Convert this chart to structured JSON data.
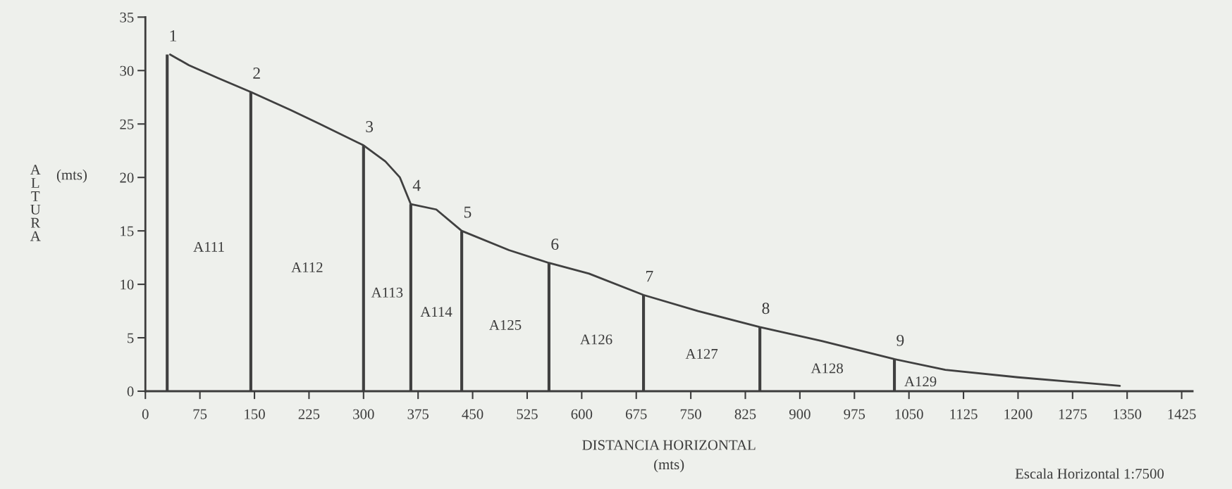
{
  "chart_data": {
    "type": "line",
    "xlabel": "DISTANCIA HORIZONTAL\n(mts)",
    "ylabel": "ALTURA (mts)",
    "xlim": [
      0,
      1440
    ],
    "ylim": [
      0,
      35
    ],
    "xticks": [
      0,
      75,
      150,
      225,
      300,
      375,
      450,
      525,
      600,
      675,
      750,
      825,
      900,
      975,
      1050,
      1125,
      1200,
      1275,
      1350,
      1425
    ],
    "yticks": [
      0,
      5,
      10,
      15,
      20,
      25,
      30,
      35
    ],
    "grid": false,
    "legend": false,
    "marker": "none",
    "line_style": "solid",
    "series": [
      {
        "color": "#404040",
        "x": [
          34,
          60,
          100,
          145,
          200,
          240,
          300,
          330,
          350,
          365,
          400,
          435,
          500,
          555,
          610,
          685,
          760,
          845,
          930,
          1030,
          1100,
          1200,
          1340
        ],
        "values": [
          31.5,
          30.5,
          29.3,
          28,
          26.3,
          25,
          23,
          21.5,
          20,
          17.5,
          17,
          15,
          13.2,
          12,
          11,
          9,
          7.5,
          6,
          4.7,
          3,
          2,
          1.3,
          0.5
        ]
      },
      {
        "type": "bar",
        "color": "#404040",
        "x": [
          30,
          145,
          300,
          365,
          435,
          555,
          685,
          845,
          1030
        ],
        "values": [
          31.5,
          28,
          23,
          17.5,
          15,
          12,
          9,
          6,
          3
        ]
      }
    ],
    "annotations": [
      {
        "text": "1",
        "x": 30,
        "y": 31.5
      },
      {
        "text": "2",
        "x": 145,
        "y": 28
      },
      {
        "text": "3",
        "x": 300,
        "y": 23
      },
      {
        "text": "4",
        "x": 365,
        "y": 17.5
      },
      {
        "text": "5",
        "x": 435,
        "y": 15
      },
      {
        "text": "6",
        "x": 555,
        "y": 12
      },
      {
        "text": "7",
        "x": 685,
        "y": 9
      },
      {
        "text": "8",
        "x": 845,
        "y": 6
      },
      {
        "text": "9",
        "x": 1030,
        "y": 3
      },
      "A111",
      "A112",
      "A113",
      "A114",
      "A125",
      "A126",
      "A127",
      "A128",
      "A129",
      "Escala Horizontal 1:7500"
    ]
  }
}
